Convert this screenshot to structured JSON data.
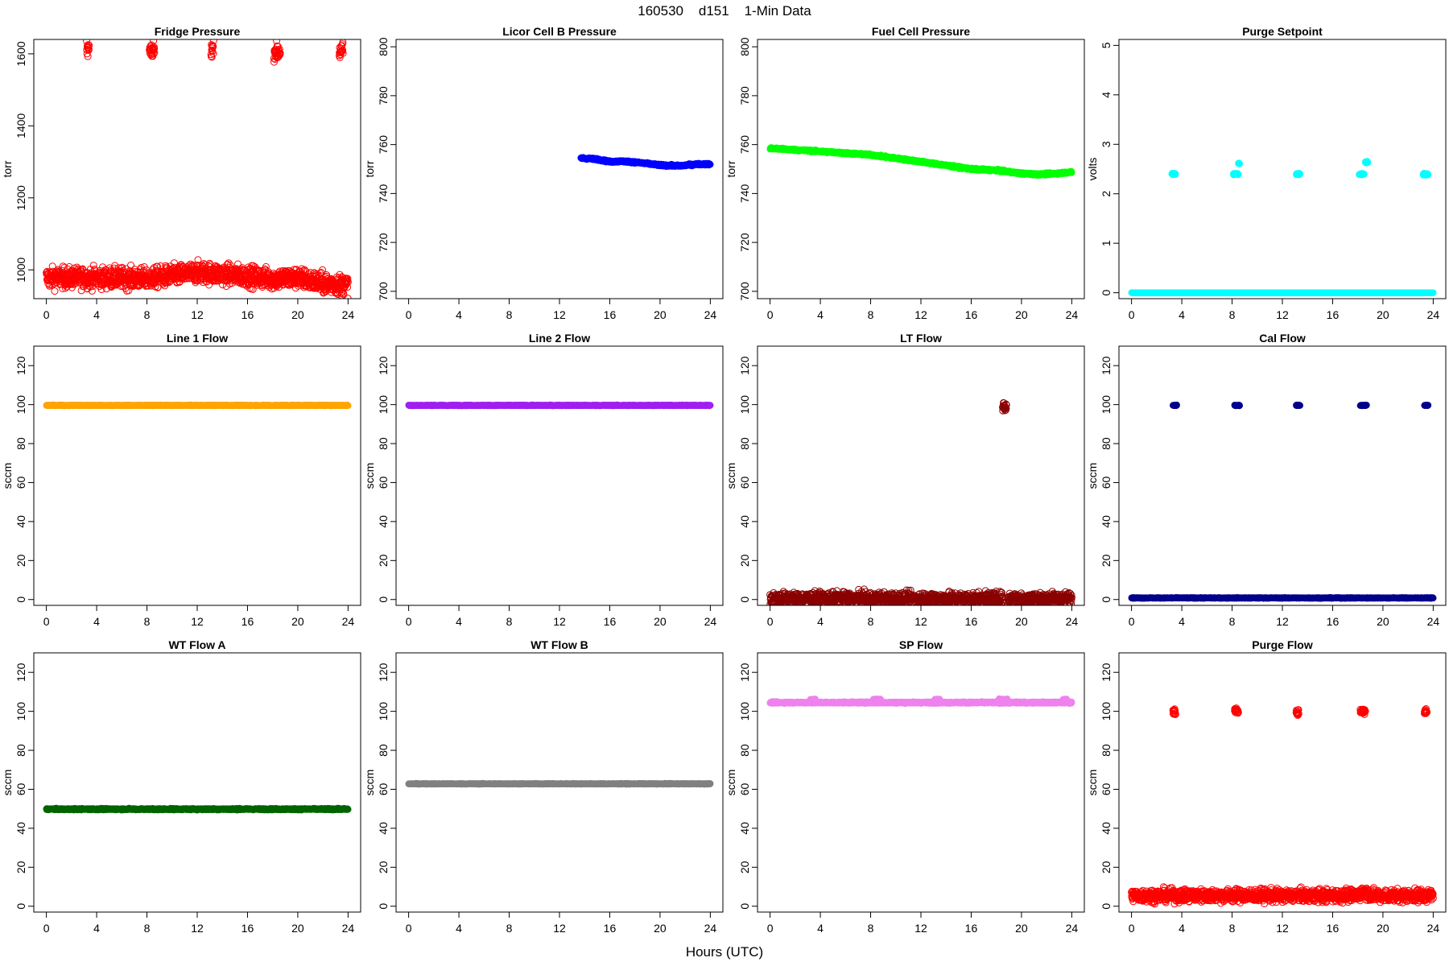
{
  "figure": {
    "title": "160530    d151    1-Min Data",
    "xlabel": "Hours (UTC)"
  },
  "chart_data": [
    {
      "type": "scatter",
      "title": "Fridge Pressure",
      "ylabel": "torr",
      "color": "#ff0000",
      "marker": "open",
      "xlim": [
        -1,
        25
      ],
      "ylim": [
        920,
        1640
      ],
      "xticks": [
        0,
        4,
        8,
        12,
        16,
        20,
        24
      ],
      "yticks": [
        1000,
        1200,
        1400,
        1600
      ],
      "series": [
        {
          "x_range": [
            0,
            24
          ],
          "values_profile": [
            [
              0,
              978
            ],
            [
              4,
              978
            ],
            [
              8,
              976
            ],
            [
              11,
              988
            ],
            [
              12,
              993
            ],
            [
              16,
              983
            ],
            [
              18,
              975
            ],
            [
              20,
              978
            ],
            [
              22,
              963
            ],
            [
              24,
              958
            ]
          ],
          "jitter": 14
        },
        {
          "x_range": [
            3.2,
            3.4
          ],
          "values_profile": [
            [
              3.2,
              1610
            ],
            [
              3.4,
              1612
            ]
          ],
          "jitter": 14
        },
        {
          "x_range": [
            8.2,
            8.6
          ],
          "values_profile": [
            [
              8.2,
              1608
            ],
            [
              8.6,
              1610
            ]
          ],
          "jitter": 14
        },
        {
          "x_range": [
            13.1,
            13.3
          ],
          "values_profile": [
            [
              13.1,
              1612
            ],
            [
              13.3,
              1614
            ]
          ],
          "jitter": 10
        },
        {
          "x_range": [
            18.1,
            18.6
          ],
          "values_profile": [
            [
              18.1,
              1608
            ],
            [
              18.6,
              1606
            ]
          ],
          "jitter": 12
        },
        {
          "x_range": [
            23.3,
            23.6
          ],
          "values_profile": [
            [
              23.3,
              1605
            ],
            [
              23.6,
              1607
            ]
          ],
          "jitter": 12
        }
      ]
    },
    {
      "type": "scatter",
      "title": "Licor Cell B Pressure",
      "ylabel": "torr",
      "color": "#0000ff",
      "marker": "filled",
      "xlim": [
        -1,
        25
      ],
      "ylim": [
        697,
        803
      ],
      "xticks": [
        0,
        4,
        8,
        12,
        16,
        20,
        24
      ],
      "yticks": [
        700,
        720,
        740,
        760,
        780,
        800
      ],
      "series": [
        {
          "x_range": [
            13.7,
            24
          ],
          "values_profile": [
            [
              13.7,
              754.5
            ],
            [
              15,
              754
            ],
            [
              16,
              753
            ],
            [
              17,
              753.2
            ],
            [
              18,
              752.8
            ],
            [
              20,
              751.6
            ],
            [
              21.5,
              751.3
            ],
            [
              23,
              752
            ],
            [
              24,
              752
            ]
          ],
          "jitter": 0.2
        }
      ]
    },
    {
      "type": "scatter",
      "title": "Fuel Cell Pressure",
      "ylabel": "torr",
      "color": "#00ff00",
      "marker": "filled",
      "xlim": [
        -1,
        25
      ],
      "ylim": [
        697,
        803
      ],
      "xticks": [
        0,
        4,
        8,
        12,
        16,
        20,
        24
      ],
      "yticks": [
        700,
        720,
        740,
        760,
        780,
        800
      ],
      "series": [
        {
          "x_range": [
            0,
            24
          ],
          "values_profile": [
            [
              0,
              758.5
            ],
            [
              4,
              757.2
            ],
            [
              8,
              755.8
            ],
            [
              12,
              753
            ],
            [
              16,
              750
            ],
            [
              18,
              749.5
            ],
            [
              20,
              748.2
            ],
            [
              21.5,
              747.8
            ],
            [
              23,
              748.3
            ],
            [
              24,
              748.8
            ]
          ],
          "jitter": 0.2
        }
      ]
    },
    {
      "type": "scatter",
      "title": "Purge Setpoint",
      "ylabel": "volts",
      "color": "#00ffff",
      "marker": "filled",
      "xlim": [
        -1,
        25
      ],
      "ylim": [
        -0.12,
        5.12
      ],
      "xticks": [
        0,
        4,
        8,
        12,
        16,
        20,
        24
      ],
      "yticks": [
        0,
        1,
        2,
        3,
        4,
        5
      ],
      "series": [
        {
          "x_range": [
            0,
            24
          ],
          "values_profile": [
            [
              0,
              0
            ],
            [
              24,
              0
            ]
          ],
          "jitter": 0
        },
        {
          "x_range": [
            3.2,
            3.5
          ],
          "values_profile": [
            [
              3.2,
              2.4
            ],
            [
              3.5,
              2.4
            ]
          ],
          "jitter": 0.01
        },
        {
          "x_range": [
            8.1,
            8.5
          ],
          "values_profile": [
            [
              8.1,
              2.4
            ],
            [
              8.5,
              2.4
            ]
          ],
          "jitter": 0.01
        },
        {
          "x_range": [
            8.5,
            8.6
          ],
          "values_profile": [
            [
              8.5,
              2.62
            ],
            [
              8.6,
              2.62
            ]
          ],
          "jitter": 0.01
        },
        {
          "x_range": [
            13.1,
            13.4
          ],
          "values_profile": [
            [
              13.1,
              2.4
            ],
            [
              13.4,
              2.4
            ]
          ],
          "jitter": 0.01
        },
        {
          "x_range": [
            18.1,
            18.5
          ],
          "values_profile": [
            [
              18.1,
              2.4
            ],
            [
              18.5,
              2.4
            ]
          ],
          "jitter": 0.01
        },
        {
          "x_range": [
            18.6,
            18.8
          ],
          "values_profile": [
            [
              18.6,
              2.64
            ],
            [
              18.8,
              2.64
            ]
          ],
          "jitter": 0.01
        },
        {
          "x_range": [
            23.2,
            23.6
          ],
          "values_profile": [
            [
              23.2,
              2.4
            ],
            [
              23.6,
              2.4
            ]
          ],
          "jitter": 0.01
        }
      ]
    },
    {
      "type": "scatter",
      "title": "Line 1 Flow",
      "ylabel": "sccm",
      "color": "#ffa500",
      "marker": "filled",
      "xlim": [
        -1,
        25
      ],
      "ylim": [
        -3,
        130
      ],
      "xticks": [
        0,
        4,
        8,
        12,
        16,
        20,
        24
      ],
      "yticks": [
        0,
        20,
        40,
        60,
        80,
        100,
        120
      ],
      "series": [
        {
          "x_range": [
            0,
            24
          ],
          "values_profile": [
            [
              0,
              99.6
            ],
            [
              24,
              99.6
            ]
          ],
          "jitter": 0.1
        }
      ]
    },
    {
      "type": "scatter",
      "title": "Line 2 Flow",
      "ylabel": "sccm",
      "color": "#a020f0",
      "marker": "filled",
      "xlim": [
        -1,
        25
      ],
      "ylim": [
        -3,
        130
      ],
      "xticks": [
        0,
        4,
        8,
        12,
        16,
        20,
        24
      ],
      "yticks": [
        0,
        20,
        40,
        60,
        80,
        100,
        120
      ],
      "series": [
        {
          "x_range": [
            0,
            24
          ],
          "values_profile": [
            [
              0,
              99.6
            ],
            [
              24,
              99.6
            ]
          ],
          "jitter": 0.1
        }
      ]
    },
    {
      "type": "scatter",
      "title": "LT Flow",
      "ylabel": "sccm",
      "color": "#8b0000",
      "marker": "open",
      "xlim": [
        -1,
        25
      ],
      "ylim": [
        -3,
        130
      ],
      "xticks": [
        0,
        4,
        8,
        12,
        16,
        20,
        24
      ],
      "yticks": [
        0,
        20,
        40,
        60,
        80,
        100,
        120
      ],
      "series": [
        {
          "x_range": [
            0,
            18.5
          ],
          "values_profile": [
            [
              0,
              0.5
            ],
            [
              18.5,
              0.5
            ]
          ],
          "jitter": 1.6
        },
        {
          "x_range": [
            18.9,
            24
          ],
          "values_profile": [
            [
              18.9,
              0.5
            ],
            [
              24,
              0.5
            ]
          ],
          "jitter": 1.6
        },
        {
          "x_range": [
            18.5,
            18.8
          ],
          "values_profile": [
            [
              18.5,
              99.5
            ],
            [
              18.8,
              100
            ]
          ],
          "jitter": 1.2
        }
      ]
    },
    {
      "type": "scatter",
      "title": "Cal Flow",
      "ylabel": "sccm",
      "color": "#00008b",
      "marker": "filled",
      "xlim": [
        -1,
        25
      ],
      "ylim": [
        -3,
        130
      ],
      "xticks": [
        0,
        4,
        8,
        12,
        16,
        20,
        24
      ],
      "yticks": [
        0,
        20,
        40,
        60,
        80,
        100,
        120
      ],
      "series": [
        {
          "x_range": [
            0,
            24
          ],
          "values_profile": [
            [
              0,
              0.8
            ],
            [
              24,
              0.8
            ]
          ],
          "jitter": 0.1
        },
        {
          "x_range": [
            3.3,
            3.6
          ],
          "values_profile": [
            [
              3.3,
              99.6
            ],
            [
              3.6,
              99.6
            ]
          ],
          "jitter": 0.1
        },
        {
          "x_range": [
            8.2,
            8.6
          ],
          "values_profile": [
            [
              8.2,
              99.6
            ],
            [
              8.6,
              99.6
            ]
          ],
          "jitter": 0.1
        },
        {
          "x_range": [
            13.1,
            13.4
          ],
          "values_profile": [
            [
              13.1,
              99.6
            ],
            [
              13.4,
              99.6
            ]
          ],
          "jitter": 0.1
        },
        {
          "x_range": [
            18.2,
            18.7
          ],
          "values_profile": [
            [
              18.2,
              99.6
            ],
            [
              18.7,
              99.6
            ]
          ],
          "jitter": 0.1
        },
        {
          "x_range": [
            23.3,
            23.6
          ],
          "values_profile": [
            [
              23.3,
              99.6
            ],
            [
              23.6,
              99.6
            ]
          ],
          "jitter": 0.1
        }
      ]
    },
    {
      "type": "scatter",
      "title": "WT Flow A",
      "ylabel": "sccm",
      "color": "#006400",
      "marker": "filled",
      "xlim": [
        -1,
        25
      ],
      "ylim": [
        -3,
        130
      ],
      "xticks": [
        0,
        4,
        8,
        12,
        16,
        20,
        24
      ],
      "yticks": [
        0,
        20,
        40,
        60,
        80,
        100,
        120
      ],
      "series": [
        {
          "x_range": [
            0,
            24
          ],
          "values_profile": [
            [
              0,
              49.8
            ],
            [
              24,
              49.8
            ]
          ],
          "jitter": 0.2
        }
      ]
    },
    {
      "type": "scatter",
      "title": "WT Flow B",
      "ylabel": "sccm",
      "color": "#808080",
      "marker": "filled",
      "xlim": [
        -1,
        25
      ],
      "ylim": [
        -3,
        130
      ],
      "xticks": [
        0,
        4,
        8,
        12,
        16,
        20,
        24
      ],
      "yticks": [
        0,
        20,
        40,
        60,
        80,
        100,
        120
      ],
      "series": [
        {
          "x_range": [
            0,
            24
          ],
          "values_profile": [
            [
              0,
              62.8
            ],
            [
              24,
              62.8
            ]
          ],
          "jitter": 0.1
        }
      ]
    },
    {
      "type": "scatter",
      "title": "SP Flow",
      "ylabel": "sccm",
      "color": "#ee82ee",
      "marker": "filled",
      "xlim": [
        -1,
        25
      ],
      "ylim": [
        -3,
        130
      ],
      "xticks": [
        0,
        4,
        8,
        12,
        16,
        20,
        24
      ],
      "yticks": [
        0,
        20,
        40,
        60,
        80,
        100,
        120
      ],
      "series": [
        {
          "x_range": [
            0,
            24
          ],
          "values_profile": [
            [
              0,
              104.5
            ],
            [
              24,
              104.5
            ]
          ],
          "jitter": 0.2
        },
        {
          "x_range": [
            3.2,
            3.6
          ],
          "values_profile": [
            [
              3.2,
              106
            ],
            [
              3.6,
              106
            ]
          ],
          "jitter": 0.2
        },
        {
          "x_range": [
            8.2,
            8.8
          ],
          "values_profile": [
            [
              8.2,
              106
            ],
            [
              8.8,
              106
            ]
          ],
          "jitter": 0.2
        },
        {
          "x_range": [
            13.1,
            13.5
          ],
          "values_profile": [
            [
              13.1,
              106
            ],
            [
              13.5,
              106
            ]
          ],
          "jitter": 0.2
        },
        {
          "x_range": [
            18.2,
            18.9
          ],
          "values_profile": [
            [
              18.2,
              106
            ],
            [
              18.9,
              106
            ]
          ],
          "jitter": 0.2
        },
        {
          "x_range": [
            23.3,
            23.6
          ],
          "values_profile": [
            [
              23.3,
              106
            ],
            [
              23.6,
              106
            ]
          ],
          "jitter": 0.2
        }
      ]
    },
    {
      "type": "scatter",
      "title": "Purge Flow",
      "ylabel": "sccm",
      "color": "#ff0000",
      "marker": "open",
      "xlim": [
        -1,
        25
      ],
      "ylim": [
        -3,
        130
      ],
      "xticks": [
        0,
        4,
        8,
        12,
        16,
        20,
        24
      ],
      "yticks": [
        0,
        20,
        40,
        60,
        80,
        100,
        120
      ],
      "series": [
        {
          "x_range": [
            0,
            24
          ],
          "values_profile": [
            [
              0,
              5.5
            ],
            [
              18,
              5.5
            ],
            [
              18.5,
              8
            ],
            [
              19,
              5.5
            ],
            [
              24,
              5.5
            ]
          ],
          "jitter": 1.6
        },
        {
          "x_range": [
            3.3,
            3.5
          ],
          "values_profile": [
            [
              3.3,
              100
            ],
            [
              3.5,
              100
            ]
          ],
          "jitter": 0.8
        },
        {
          "x_range": [
            8.2,
            8.5
          ],
          "values_profile": [
            [
              8.2,
              100
            ],
            [
              8.5,
              100
            ]
          ],
          "jitter": 0.8
        },
        {
          "x_range": [
            13.1,
            13.3
          ],
          "values_profile": [
            [
              13.1,
              100
            ],
            [
              13.3,
              100
            ]
          ],
          "jitter": 0.8
        },
        {
          "x_range": [
            18.2,
            18.6
          ],
          "values_profile": [
            [
              18.2,
              100
            ],
            [
              18.6,
              100
            ]
          ],
          "jitter": 0.8
        },
        {
          "x_range": [
            23.3,
            23.5
          ],
          "values_profile": [
            [
              23.3,
              100
            ],
            [
              23.5,
              100
            ]
          ],
          "jitter": 0.8
        }
      ]
    }
  ]
}
